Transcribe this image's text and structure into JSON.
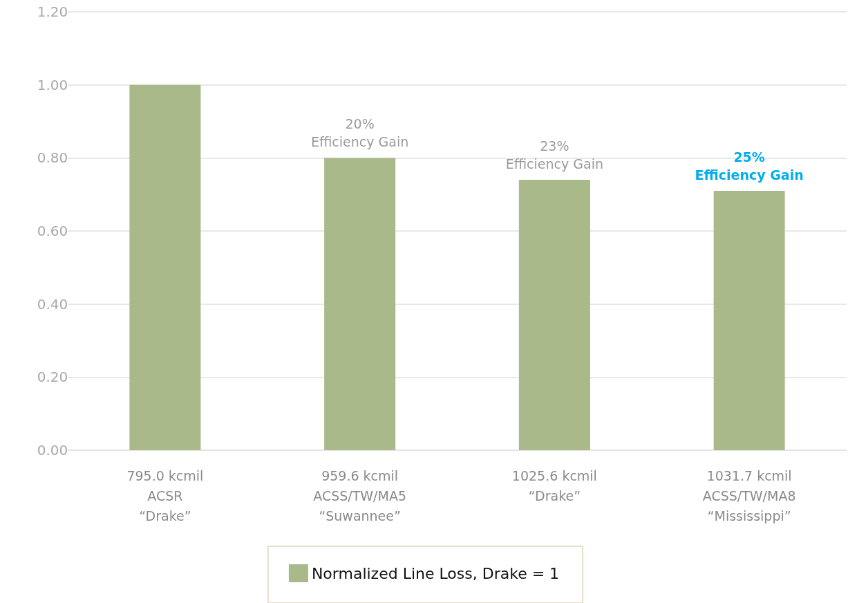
{
  "chart_data": {
    "type": "bar",
    "categories": [
      "795.0 kcmil\nACSR\n“Drake”",
      "959.6 kcmil\nACSS/TW/MA5\n“Suwannee”",
      "1025.6 kcmil\n“Drake”",
      "1031.7 kcmil\nACSS/TW/MA8\n“Mississippi”"
    ],
    "series": [
      {
        "name": "Normalized Line Loss, Drake = 1",
        "color": "#a9b98a",
        "values": [
          1.0,
          0.8,
          0.74,
          0.71
        ]
      }
    ],
    "ylim": [
      0,
      1.2
    ],
    "yticks": [
      {
        "value": 0,
        "label": "0.00"
      },
      {
        "value": 0.2,
        "label": "0.20"
      },
      {
        "value": 0.4,
        "label": "0.40"
      },
      {
        "value": 0.6,
        "label": "0.60"
      },
      {
        "value": 0.8,
        "label": "0.80"
      },
      {
        "value": 1.0,
        "label": "1.00"
      },
      {
        "value": 1.2,
        "label": "1.20"
      }
    ],
    "grid": "y",
    "legend": "bottom",
    "annotations": [
      {
        "text": "20%\nEfficiency Gain",
        "x": "959.6 kcmil\nACSS/TW/MA5\n“Suwannee”",
        "y": 0.8
      },
      {
        "text": "23%\nEfficiency Gain",
        "x": "1025.6 kcmil\n“Drake”",
        "y": 0.74
      },
      {
        "text": "25%\nEfficiency Gain",
        "x": "1031.7 kcmil\nACSS/TW/MA8\n“Mississippi”",
        "y": 0.71
      }
    ]
  }
}
